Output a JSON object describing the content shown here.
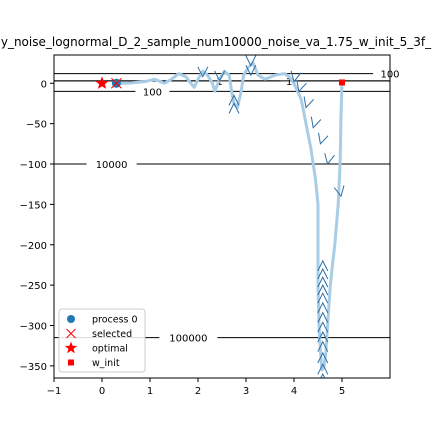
{
  "chart_data": {
    "type": "line",
    "title": "y_noise_lognormal_D_2_sample_num10000_noise_va_1.75_w_init_5_3f_",
    "xlabel": "",
    "ylabel": "",
    "xlim": [
      -1,
      6
    ],
    "ylim": [
      -365,
      35
    ],
    "xticks": [
      -1,
      0,
      1,
      2,
      3,
      4,
      5
    ],
    "yticks": [
      0,
      -50,
      -100,
      -150,
      -200,
      -250,
      -300,
      -350
    ],
    "contours": [
      {
        "label": "100000",
        "y": -315,
        "label_x": 1.8
      },
      {
        "label": "10000",
        "y": -100,
        "label_x": 0.2
      },
      {
        "label": "100",
        "y": -10,
        "label_x": 1.05
      },
      {
        "label": "100",
        "y": 12,
        "label_x": 6.0
      },
      {
        "label": "1",
        "y": 3,
        "label_x": 2.45
      },
      {
        "label": "1",
        "y": 3,
        "label_x": 3.9
      }
    ],
    "trajectory": {
      "name": "process 0",
      "color": "#a9cde6",
      "points": [
        [
          5.0,
          1
        ],
        [
          4.98,
          -40
        ],
        [
          4.96,
          -100
        ],
        [
          4.92,
          -150
        ],
        [
          4.85,
          -200
        ],
        [
          4.8,
          -225
        ],
        [
          4.75,
          -255
        ],
        [
          4.7,
          -300
        ],
        [
          4.66,
          -335
        ],
        [
          4.62,
          -352
        ],
        [
          4.58,
          -355
        ],
        [
          4.55,
          -330
        ],
        [
          4.52,
          -300
        ],
        [
          4.5,
          -250
        ],
        [
          4.5,
          -200
        ],
        [
          4.5,
          -150
        ],
        [
          4.45,
          -120
        ],
        [
          4.4,
          -100
        ],
        [
          4.35,
          -80
        ],
        [
          4.25,
          -50
        ],
        [
          4.15,
          -20
        ],
        [
          4.0,
          0
        ],
        [
          3.9,
          8
        ],
        [
          3.8,
          12
        ],
        [
          3.6,
          10
        ],
        [
          3.4,
          5
        ],
        [
          3.25,
          10
        ],
        [
          3.15,
          25
        ],
        [
          3.05,
          20
        ],
        [
          2.95,
          10
        ],
        [
          2.9,
          -10
        ],
        [
          2.82,
          -30
        ],
        [
          2.75,
          -25
        ],
        [
          2.7,
          -10
        ],
        [
          2.65,
          10
        ],
        [
          2.55,
          15
        ],
        [
          2.45,
          5
        ],
        [
          2.35,
          -10
        ],
        [
          2.3,
          0
        ],
        [
          2.2,
          10
        ],
        [
          2.1,
          15
        ],
        [
          2.0,
          5
        ],
        [
          1.92,
          -5
        ],
        [
          1.85,
          0
        ],
        [
          1.75,
          8
        ],
        [
          1.6,
          12
        ],
        [
          1.45,
          5
        ],
        [
          1.3,
          0
        ],
        [
          1.1,
          5
        ],
        [
          0.9,
          2
        ],
        [
          0.7,
          1
        ],
        [
          0.5,
          0
        ],
        [
          0.3,
          0
        ]
      ],
      "arrows": [
        [
          4.98,
          -140,
          0.2,
          -1
        ],
        [
          4.7,
          -100,
          -0.2,
          -1
        ],
        [
          4.55,
          -75,
          -0.3,
          -1
        ],
        [
          4.4,
          -55,
          -0.3,
          -1
        ],
        [
          4.25,
          -30,
          -0.3,
          -1
        ],
        [
          4.1,
          -10,
          -0.3,
          -1
        ],
        [
          4.0,
          2,
          -0.2,
          -1
        ],
        [
          4.6,
          -220,
          0,
          1
        ],
        [
          4.6,
          -230,
          0,
          1
        ],
        [
          4.6,
          -240,
          0,
          1
        ],
        [
          4.6,
          -250,
          0,
          1
        ],
        [
          4.6,
          -260,
          0,
          1
        ],
        [
          4.6,
          -272,
          0,
          1
        ],
        [
          4.6,
          -284,
          0,
          1
        ],
        [
          4.6,
          -296,
          0,
          1
        ],
        [
          4.6,
          -308,
          0,
          1
        ],
        [
          4.6,
          -320,
          0,
          1
        ],
        [
          4.6,
          -334,
          0,
          1
        ],
        [
          4.6,
          -348,
          0,
          1
        ],
        [
          4.6,
          -360,
          0,
          1
        ],
        [
          3.1,
          22,
          0,
          -1
        ],
        [
          3.1,
          10,
          0,
          -1
        ],
        [
          2.75,
          -25,
          0,
          1
        ],
        [
          2.75,
          -15,
          0,
          1
        ],
        [
          2.45,
          3,
          0,
          -1
        ],
        [
          2.1,
          8,
          0,
          -1
        ]
      ]
    },
    "points": {
      "process": {
        "label": "process 0",
        "x": 0.3,
        "y": 0,
        "color": "#1f77b4"
      },
      "selected": {
        "label": "selected",
        "x": 0.3,
        "y": 0,
        "color": "#ff0000"
      },
      "optimal": {
        "label": "optimal",
        "x": 0.0,
        "y": 0,
        "color": "#ff0000"
      },
      "w_init": {
        "label": "w_init",
        "x": 5.0,
        "y": 1,
        "color": "#ff0000"
      }
    },
    "legend": {
      "position": "lower-left",
      "entries": [
        "process 0",
        "selected",
        "optimal",
        "w_init"
      ]
    }
  }
}
